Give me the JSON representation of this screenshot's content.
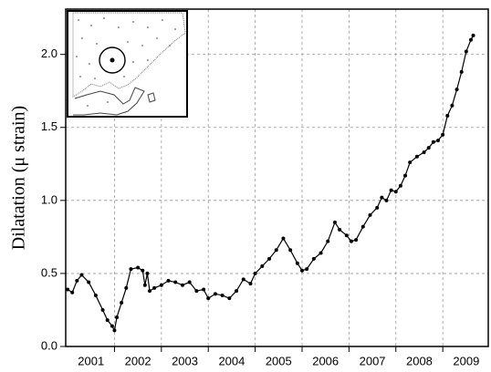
{
  "chart_data": {
    "type": "line",
    "ylabel": "Dilatation (μ strain)",
    "series": [
      {
        "color": "#000000",
        "x": [
          2001.0,
          2001.1,
          2001.2,
          2001.3,
          2001.45,
          2001.6,
          2001.75,
          2001.85,
          2001.95,
          2002.0,
          2002.05,
          2002.15,
          2002.25,
          2002.35,
          2002.5,
          2002.6,
          2002.65,
          2002.7,
          2002.75,
          2002.85,
          2003.0,
          2003.15,
          2003.3,
          2003.45,
          2003.6,
          2003.75,
          2003.9,
          2004.0,
          2004.15,
          2004.3,
          2004.45,
          2004.6,
          2004.75,
          2004.9,
          2005.0,
          2005.15,
          2005.3,
          2005.45,
          2005.6,
          2005.75,
          2005.9,
          2006.0,
          2006.1,
          2006.25,
          2006.4,
          2006.55,
          2006.7,
          2006.8,
          2006.95,
          2007.05,
          2007.15,
          2007.3,
          2007.45,
          2007.6,
          2007.7,
          2007.8,
          2007.9,
          2008.0,
          2008.1,
          2008.2,
          2008.3,
          2008.45,
          2008.6,
          2008.7,
          2008.8,
          2008.9,
          2009.0,
          2009.1,
          2009.2,
          2009.3,
          2009.4,
          2009.5,
          2009.6,
          2009.65
        ],
        "values": [
          0.39,
          0.37,
          0.45,
          0.49,
          0.44,
          0.35,
          0.25,
          0.18,
          0.14,
          0.11,
          0.2,
          0.3,
          0.4,
          0.53,
          0.54,
          0.52,
          0.42,
          0.5,
          0.38,
          0.4,
          0.42,
          0.45,
          0.44,
          0.42,
          0.44,
          0.38,
          0.39,
          0.33,
          0.36,
          0.35,
          0.33,
          0.38,
          0.46,
          0.43,
          0.5,
          0.55,
          0.6,
          0.66,
          0.74,
          0.66,
          0.57,
          0.52,
          0.53,
          0.6,
          0.64,
          0.72,
          0.85,
          0.8,
          0.76,
          0.72,
          0.73,
          0.82,
          0.9,
          0.95,
          1.02,
          1.0,
          1.07,
          1.06,
          1.1,
          1.17,
          1.26,
          1.3,
          1.33,
          1.36,
          1.4,
          1.41,
          1.45,
          1.58,
          1.65,
          1.76,
          1.88,
          2.02,
          2.1,
          2.13
        ]
      }
    ],
    "xlim": [
      2000.96,
      2009.97
    ],
    "xticks": [
      {
        "value": 2001.5,
        "label": "2001"
      },
      {
        "value": 2002.5,
        "label": "2002"
      },
      {
        "value": 2003.5,
        "label": "2003"
      },
      {
        "value": 2004.5,
        "label": "2004"
      },
      {
        "value": 2005.5,
        "label": "2005"
      },
      {
        "value": 2006.5,
        "label": "2006"
      },
      {
        "value": 2007.5,
        "label": "2007"
      },
      {
        "value": 2008.5,
        "label": "2008"
      },
      {
        "value": 2009.5,
        "label": "2009"
      }
    ],
    "xgrid": [
      2002,
      2003,
      2004,
      2005,
      2006,
      2007,
      2008,
      2009
    ],
    "ylim": [
      0,
      2.31
    ],
    "yticks": [
      {
        "value": 0,
        "label": "0.0"
      },
      0.5,
      {
        "value": 1,
        "label": "1.0"
      },
      1.5,
      {
        "value": 2,
        "label": "2.0"
      }
    ],
    "grid": true
  }
}
